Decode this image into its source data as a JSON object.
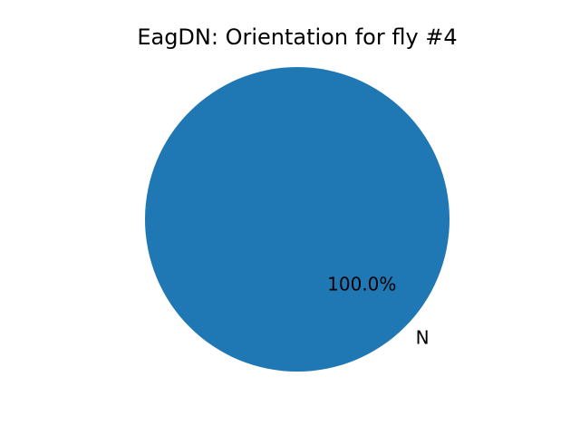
{
  "chart_data": {
    "type": "pie",
    "title": "EagDN: Orientation for fly #4",
    "categories": [
      "N"
    ],
    "values": [
      100.0
    ],
    "percent_labels": [
      "100.0%"
    ],
    "colors": [
      "#1f77b4"
    ],
    "legend": "none",
    "grid": false
  }
}
